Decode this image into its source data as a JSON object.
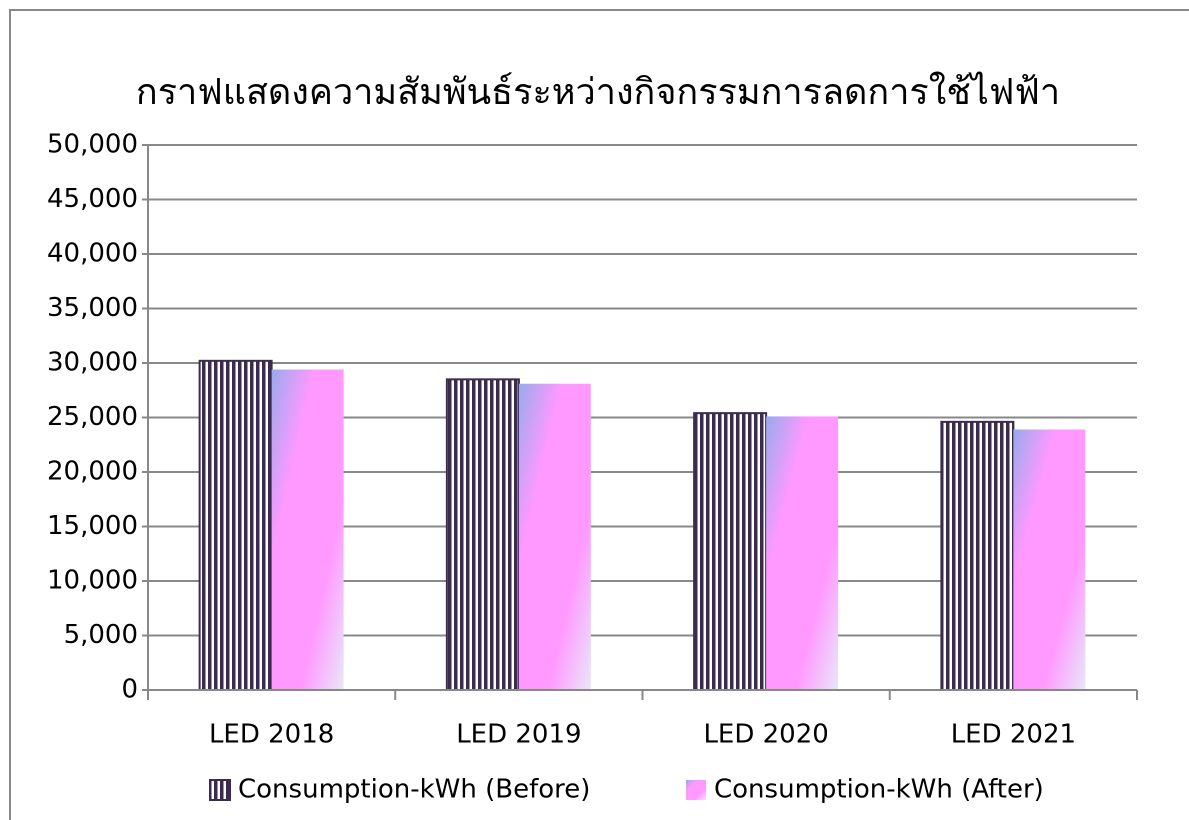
{
  "chart_data": {
    "type": "bar",
    "title": "กราฟแสดงความสัมพันธ์ระหว่างกิจกรรมการลดการใช้ไฟฟ้า",
    "categories": [
      "LED 2018",
      "LED 2019",
      "LED 2020",
      "LED 2021"
    ],
    "series": [
      {
        "name": "Consumption-kWh (Before)",
        "color": "#3b2b4f",
        "values": [
          30200,
          28500,
          25400,
          24600
        ]
      },
      {
        "name": "Consumption-kWh (After)",
        "color": "#ff99ff",
        "values": [
          29400,
          28100,
          25100,
          23900
        ]
      }
    ],
    "ylim": [
      0,
      50000
    ],
    "yticks": [
      0,
      {
        "value": 5000,
        "label": "5,000"
      },
      {
        "value": 10000,
        "label": "10,000"
      },
      {
        "value": 15000,
        "label": "15,000"
      },
      {
        "value": 20000,
        "label": "20,000"
      },
      {
        "value": 25000,
        "label": "25,000"
      },
      {
        "value": 30000,
        "label": "30,000"
      },
      {
        "value": 35000,
        "label": "35,000"
      },
      {
        "value": 40000,
        "label": "40,000"
      },
      {
        "value": 45000,
        "label": "45,000"
      },
      {
        "value": 50000,
        "label": "50,000"
      }
    ],
    "grid": true,
    "legend": "bottom"
  }
}
